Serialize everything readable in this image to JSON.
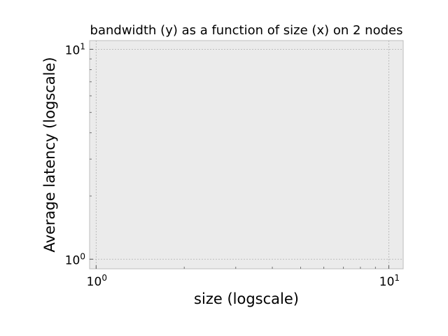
{
  "chart_data": {
    "type": "line",
    "title": "bandwidth (y) as a function of size (x) on 2 nodes",
    "xlabel": "size (logscale)",
    "ylabel": "Average latency (logscale)",
    "x_scale": "log",
    "y_scale": "log",
    "xlim": [
      0.95,
      11.2
    ],
    "ylim": [
      0.9,
      11.0
    ],
    "x_major_ticks": [
      1,
      10
    ],
    "y_major_ticks": [
      1,
      10
    ],
    "x_minor_ticks": [
      2,
      3,
      4,
      5,
      6,
      7,
      8,
      9
    ],
    "y_minor_ticks": [
      2,
      3,
      4,
      5,
      6,
      7,
      8,
      9
    ],
    "grid": true,
    "background_color": "#ebebeb",
    "series": []
  }
}
